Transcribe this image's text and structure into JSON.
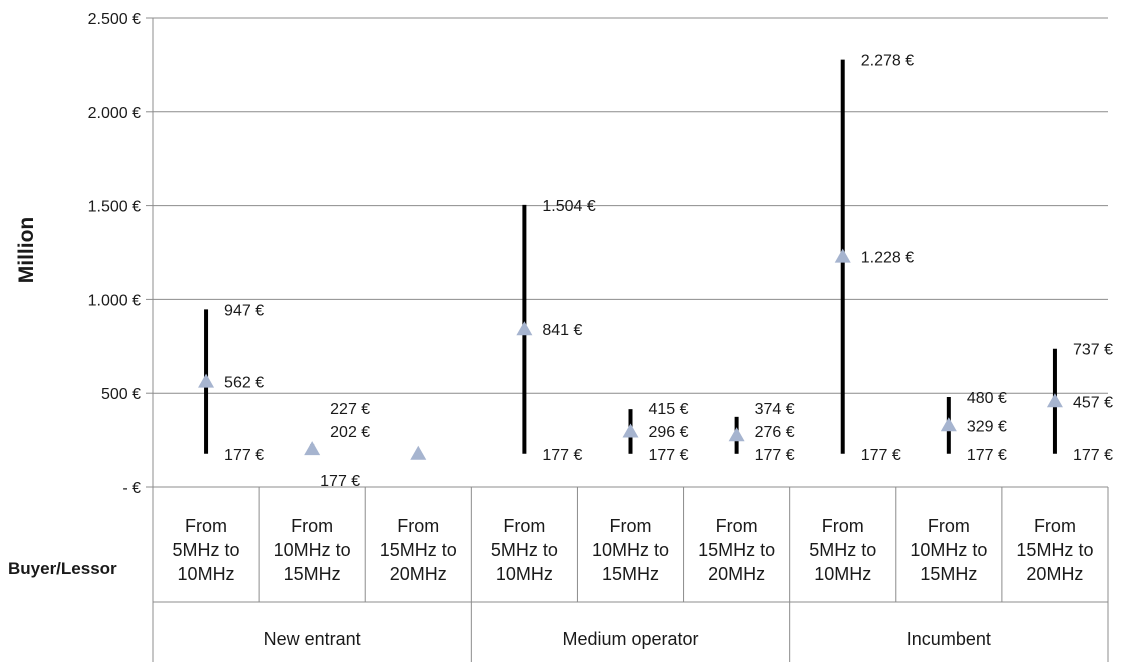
{
  "chart_data": {
    "type": "scatter",
    "ylabel": "Million",
    "row_header": "Buyer/Lessor",
    "ylim": [
      0,
      2500
    ],
    "y_ticks": [
      {
        "value": 0,
        "label": "- €"
      },
      {
        "value": 500,
        "label": "500 €"
      },
      {
        "value": 1000,
        "label": "1.000 €"
      },
      {
        "value": 1500,
        "label": "1.500 €"
      },
      {
        "value": 2000,
        "label": "2.000 €"
      },
      {
        "value": 2500,
        "label": "2.500 €"
      }
    ],
    "grid": true,
    "groups": [
      {
        "name": "New entrant",
        "categories": [
          {
            "label": [
              "From",
              "5MHz to",
              "10MHz"
            ],
            "min": 177,
            "mid": 562,
            "max": 947,
            "min_label": "177 €",
            "mid_label": "562 €",
            "max_label": "947 €"
          },
          {
            "label": [
              "From",
              "10MHz to",
              "15MHz"
            ],
            "min": 177,
            "mid": 202,
            "max": 227,
            "min_label": "177 €",
            "mid_label": "202 €",
            "max_label": "227 €"
          },
          {
            "label": [
              "From",
              "15MHz to",
              "20MHz"
            ],
            "min": 177,
            "mid": 177,
            "max": 177,
            "min_label": "",
            "mid_label": "",
            "max_label": ""
          }
        ]
      },
      {
        "name": "Medium operator",
        "categories": [
          {
            "label": [
              "From",
              "5MHz to",
              "10MHz"
            ],
            "min": 177,
            "mid": 841,
            "max": 1504,
            "min_label": "177 €",
            "mid_label": "841 €",
            "max_label": "1.504 €"
          },
          {
            "label": [
              "From",
              "10MHz to",
              "15MHz"
            ],
            "min": 177,
            "mid": 296,
            "max": 415,
            "min_label": "177 €",
            "mid_label": "296 €",
            "max_label": "415 €"
          },
          {
            "label": [
              "From",
              "15MHz to",
              "20MHz"
            ],
            "min": 177,
            "mid": 276,
            "max": 374,
            "min_label": "177 €",
            "mid_label": "276 €",
            "max_label": "374 €"
          }
        ]
      },
      {
        "name": "Incumbent",
        "categories": [
          {
            "label": [
              "From",
              "5MHz to",
              "10MHz"
            ],
            "min": 177,
            "mid": 1228,
            "max": 2278,
            "min_label": "177 €",
            "mid_label": "1.228 €",
            "max_label": "2.278 €"
          },
          {
            "label": [
              "From",
              "10MHz to",
              "15MHz"
            ],
            "min": 177,
            "mid": 329,
            "max": 480,
            "min_label": "177 €",
            "mid_label": "329 €",
            "max_label": "480 €"
          },
          {
            "label": [
              "From",
              "15MHz to",
              "20MHz"
            ],
            "min": 177,
            "mid": 457,
            "max": 737,
            "min_label": "177 €",
            "mid_label": "457 €",
            "max_label": "737 €"
          }
        ]
      }
    ],
    "colors": {
      "range_line": "#000000",
      "marker": "#a6b4cf",
      "grid": "#8c8c8c",
      "text": "#1a1a1a"
    }
  }
}
